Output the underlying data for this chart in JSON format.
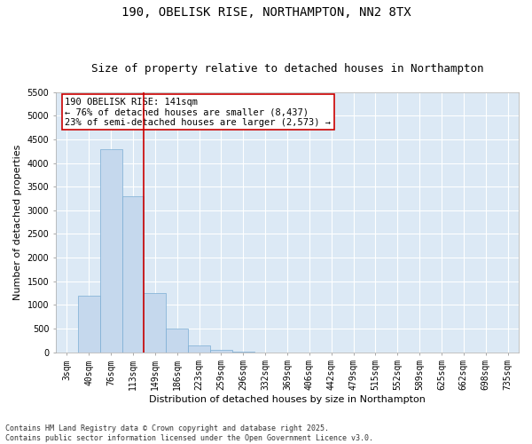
{
  "title": "190, OBELISK RISE, NORTHAMPTON, NN2 8TX",
  "subtitle": "Size of property relative to detached houses in Northampton",
  "xlabel": "Distribution of detached houses by size in Northampton",
  "ylabel": "Number of detached properties",
  "categories": [
    "3sqm",
    "40sqm",
    "76sqm",
    "113sqm",
    "149sqm",
    "186sqm",
    "223sqm",
    "259sqm",
    "296sqm",
    "332sqm",
    "369sqm",
    "406sqm",
    "442sqm",
    "479sqm",
    "515sqm",
    "552sqm",
    "589sqm",
    "625sqm",
    "662sqm",
    "698sqm",
    "735sqm"
  ],
  "values": [
    0,
    1200,
    4300,
    3300,
    1250,
    500,
    150,
    50,
    10,
    0,
    0,
    0,
    0,
    0,
    0,
    0,
    0,
    0,
    0,
    0,
    0
  ],
  "bar_color": "#c5d8ed",
  "bar_edge_color": "#7aadd4",
  "vline_color": "#cc0000",
  "vline_x_index": 3.5,
  "ylim": [
    0,
    5500
  ],
  "yticks": [
    0,
    500,
    1000,
    1500,
    2000,
    2500,
    3000,
    3500,
    4000,
    4500,
    5000,
    5500
  ],
  "annotation_text": "190 OBELISK RISE: 141sqm\n← 76% of detached houses are smaller (8,437)\n23% of semi-detached houses are larger (2,573) →",
  "annotation_box_facecolor": "#ffffff",
  "annotation_border_color": "#cc0000",
  "footnote": "Contains HM Land Registry data © Crown copyright and database right 2025.\nContains public sector information licensed under the Open Government Licence v3.0.",
  "plot_bg_color": "#dce9f5",
  "fig_bg_color": "#ffffff",
  "grid_color": "#ffffff",
  "title_fontsize": 10,
  "subtitle_fontsize": 9,
  "axis_label_fontsize": 8,
  "tick_fontsize": 7,
  "annot_fontsize": 7.5,
  "footnote_fontsize": 6
}
